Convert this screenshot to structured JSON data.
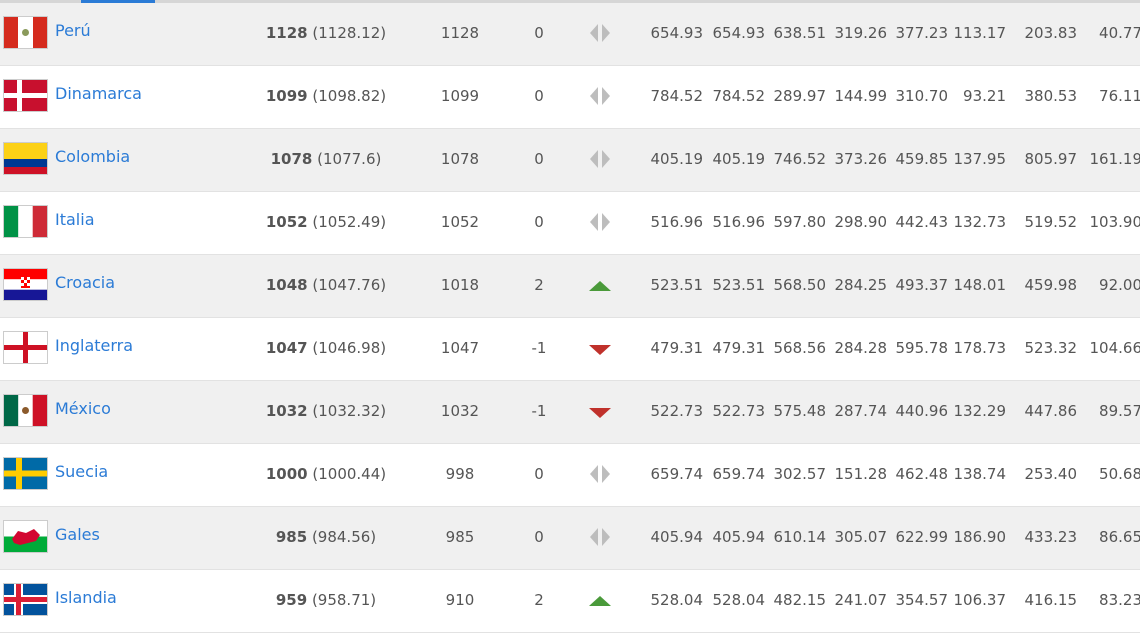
{
  "colors": {
    "link": "#2b7bd6",
    "up": "#4a9a3a",
    "down": "#c0312b",
    "neutral": "#bdbdbd",
    "row_alt": "#f0f0f0"
  },
  "rows": [
    {
      "country": "Perú",
      "flag": "peru-flag",
      "points": "1128",
      "points_exact": "(1128.12)",
      "prev_points": "1128",
      "change": "0",
      "trend": "neutral",
      "values": [
        "654.93",
        "654.93",
        "638.51",
        "319.26",
        "377.23",
        "113.17",
        "203.83",
        "40.77"
      ]
    },
    {
      "country": "Dinamarca",
      "flag": "denmark-flag",
      "points": "1099",
      "points_exact": "(1098.82)",
      "prev_points": "1099",
      "change": "0",
      "trend": "neutral",
      "values": [
        "784.52",
        "784.52",
        "289.97",
        "144.99",
        "310.70",
        "93.21",
        "380.53",
        "76.11"
      ]
    },
    {
      "country": "Colombia",
      "flag": "colombia-flag",
      "points": "1078",
      "points_exact": "(1077.6)",
      "prev_points": "1078",
      "change": "0",
      "trend": "neutral",
      "values": [
        "405.19",
        "405.19",
        "746.52",
        "373.26",
        "459.85",
        "137.95",
        "805.97",
        "161.19"
      ]
    },
    {
      "country": "Italia",
      "flag": "italy-flag",
      "points": "1052",
      "points_exact": "(1052.49)",
      "prev_points": "1052",
      "change": "0",
      "trend": "neutral",
      "values": [
        "516.96",
        "516.96",
        "597.80",
        "298.90",
        "442.43",
        "132.73",
        "519.52",
        "103.90"
      ]
    },
    {
      "country": "Croacia",
      "flag": "croatia-flag",
      "points": "1048",
      "points_exact": "(1047.76)",
      "prev_points": "1018",
      "change": "2",
      "trend": "up",
      "values": [
        "523.51",
        "523.51",
        "568.50",
        "284.25",
        "493.37",
        "148.01",
        "459.98",
        "92.00"
      ]
    },
    {
      "country": "Inglaterra",
      "flag": "england-flag",
      "points": "1047",
      "points_exact": "(1046.98)",
      "prev_points": "1047",
      "change": "-1",
      "trend": "down",
      "values": [
        "479.31",
        "479.31",
        "568.56",
        "284.28",
        "595.78",
        "178.73",
        "523.32",
        "104.66"
      ]
    },
    {
      "country": "México",
      "flag": "mexico-flag",
      "points": "1032",
      "points_exact": "(1032.32)",
      "prev_points": "1032",
      "change": "-1",
      "trend": "down",
      "values": [
        "522.73",
        "522.73",
        "575.48",
        "287.74",
        "440.96",
        "132.29",
        "447.86",
        "89.57"
      ]
    },
    {
      "country": "Suecia",
      "flag": "sweden-flag",
      "points": "1000",
      "points_exact": "(1000.44)",
      "prev_points": "998",
      "change": "0",
      "trend": "neutral",
      "values": [
        "659.74",
        "659.74",
        "302.57",
        "151.28",
        "462.48",
        "138.74",
        "253.40",
        "50.68"
      ]
    },
    {
      "country": "Gales",
      "flag": "wales-flag",
      "points": "985",
      "points_exact": "(984.56)",
      "prev_points": "985",
      "change": "0",
      "trend": "neutral",
      "values": [
        "405.94",
        "405.94",
        "610.14",
        "305.07",
        "622.99",
        "186.90",
        "433.23",
        "86.65"
      ]
    },
    {
      "country": "Islandia",
      "flag": "iceland-flag",
      "points": "959",
      "points_exact": "(958.71)",
      "prev_points": "910",
      "change": "2",
      "trend": "up",
      "values": [
        "528.04",
        "528.04",
        "482.15",
        "241.07",
        "354.57",
        "106.37",
        "416.15",
        "83.23"
      ]
    }
  ]
}
